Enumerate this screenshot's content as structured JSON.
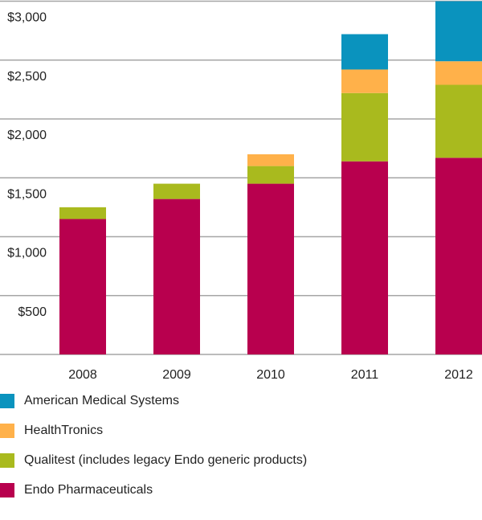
{
  "chart_data": {
    "type": "bar",
    "stacked": true,
    "categories": [
      "2008",
      "2009",
      "2010",
      "2011",
      "2012"
    ],
    "series": [
      {
        "name": "Endo Pharmaceuticals",
        "color": "#B8004E",
        "values": [
          1150,
          1320,
          1450,
          1640,
          1670
        ]
      },
      {
        "name": "Qualitest (includes legacy Endo generic products)",
        "color": "#A9BA1E",
        "values": [
          100,
          130,
          150,
          580,
          620
        ]
      },
      {
        "name": "HealthTronics",
        "color": "#FFB14A",
        "values": [
          0,
          0,
          100,
          200,
          200
        ]
      },
      {
        "name": "American Medical Systems",
        "color": "#0A93BE",
        "values": [
          0,
          0,
          0,
          300,
          510
        ]
      }
    ],
    "yticks": [
      "$500",
      "$1,000",
      "$1,500",
      "$2,000",
      "$2,500",
      "$3,000"
    ],
    "ytick_values": [
      500,
      1000,
      1500,
      2000,
      2500,
      3000
    ],
    "ylim": [
      0,
      3000
    ],
    "grid": true,
    "grid_color": "#A6A6A6",
    "legend_position": "bottom-left",
    "title": "",
    "xlabel": "",
    "ylabel": ""
  },
  "legend": [
    {
      "label": "American Medical Systems",
      "color": "#0A93BE",
      "icon": "legend-swatch"
    },
    {
      "label": "HealthTronics",
      "color": "#FFB14A",
      "icon": "legend-swatch"
    },
    {
      "label": "Qualitest (includes legacy Endo generic products)",
      "color": "#A9BA1E",
      "icon": "legend-swatch"
    },
    {
      "label": "Endo Pharmaceuticals",
      "color": "#B8004E",
      "icon": "legend-swatch"
    }
  ]
}
